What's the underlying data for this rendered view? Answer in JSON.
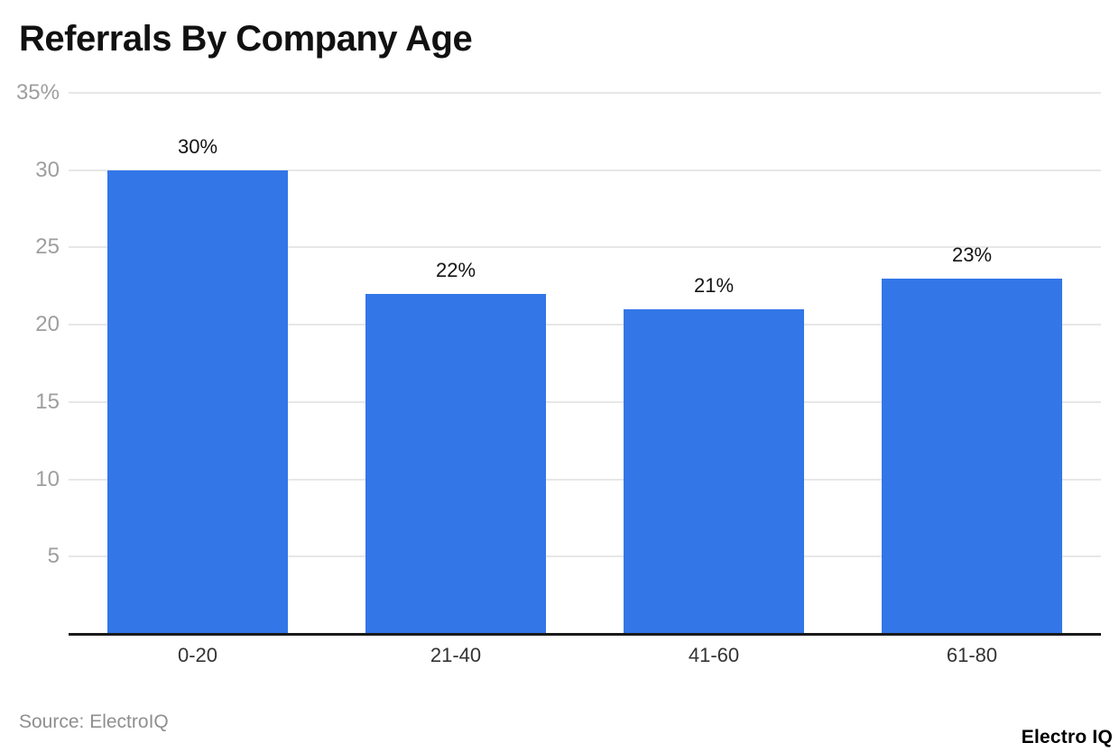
{
  "header": {
    "title": "Referrals By Company Age"
  },
  "footer": {
    "source_label": "Source: ElectroIQ",
    "branding_label": "Electro IQ"
  },
  "colors": {
    "bar": "#3376E8",
    "gridline": "#e7e7e7",
    "axis_line": "#1a1a1a",
    "tick_label": "#9e9e9e",
    "value_label": "#141414",
    "category_label": "#333333",
    "title": "#111111",
    "source": "#8f8f8f"
  },
  "chart_data": {
    "type": "bar",
    "title": "Referrals By Company Age",
    "categories": [
      "0-20",
      "21-40",
      "41-60",
      "61-80"
    ],
    "values": [
      30,
      22,
      21,
      23
    ],
    "value_labels": [
      "30%",
      "22%",
      "21%",
      "23%"
    ],
    "xlabel": "",
    "ylabel": "",
    "ylim": [
      0,
      35
    ],
    "yticks": [
      {
        "value": 35,
        "label": "35%"
      },
      {
        "value": 30,
        "label": "30"
      },
      {
        "value": 25,
        "label": "25"
      },
      {
        "value": 20,
        "label": "20"
      },
      {
        "value": 15,
        "label": "15"
      },
      {
        "value": 10,
        "label": "10"
      },
      {
        "value": 5,
        "label": "5"
      }
    ],
    "grid": true,
    "legend_position": "none",
    "bar_color": "#3376E8"
  }
}
